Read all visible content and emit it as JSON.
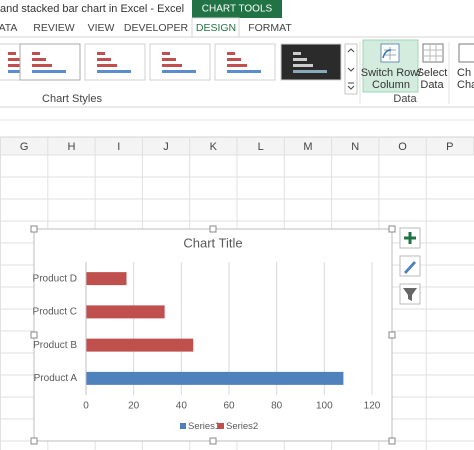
{
  "window": {
    "title": "and stacked bar chart in Excel - Excel"
  },
  "ribbon": {
    "context_label": "CHART TOOLS",
    "tabs": [
      "ATA",
      "REVIEW",
      "VIEW",
      "DEVELOPER",
      "DESIGN",
      "FORMAT"
    ],
    "active_tab": "DESIGN",
    "groups": [
      "Chart Styles",
      "Data"
    ],
    "buttons": [
      {
        "lines": [
          "Switch Row/",
          "Column"
        ]
      },
      {
        "lines": [
          "Select",
          "Data"
        ]
      },
      {
        "lines": [
          "Ch",
          "Cha"
        ]
      }
    ]
  },
  "sheet": {
    "columns": [
      "G",
      "H",
      "I",
      "J",
      "K",
      "L",
      "M",
      "N",
      "O",
      "P"
    ]
  },
  "chart_data": {
    "type": "bar",
    "orientation": "horizontal",
    "stacked": true,
    "title": "Chart Title",
    "categories": [
      "Product A",
      "Product B",
      "Product C",
      "Product D"
    ],
    "series": [
      {
        "name": "Series1",
        "color": "#4f81bd",
        "values": [
          108,
          0,
          0,
          0
        ]
      },
      {
        "name": "Series2",
        "color": "#c0504d",
        "values": [
          0,
          45,
          33,
          17
        ]
      }
    ],
    "xlim": [
      0,
      120
    ],
    "xticks": [
      0,
      20,
      40,
      60,
      80,
      100,
      120
    ],
    "grid": true,
    "legend": "bottom"
  }
}
